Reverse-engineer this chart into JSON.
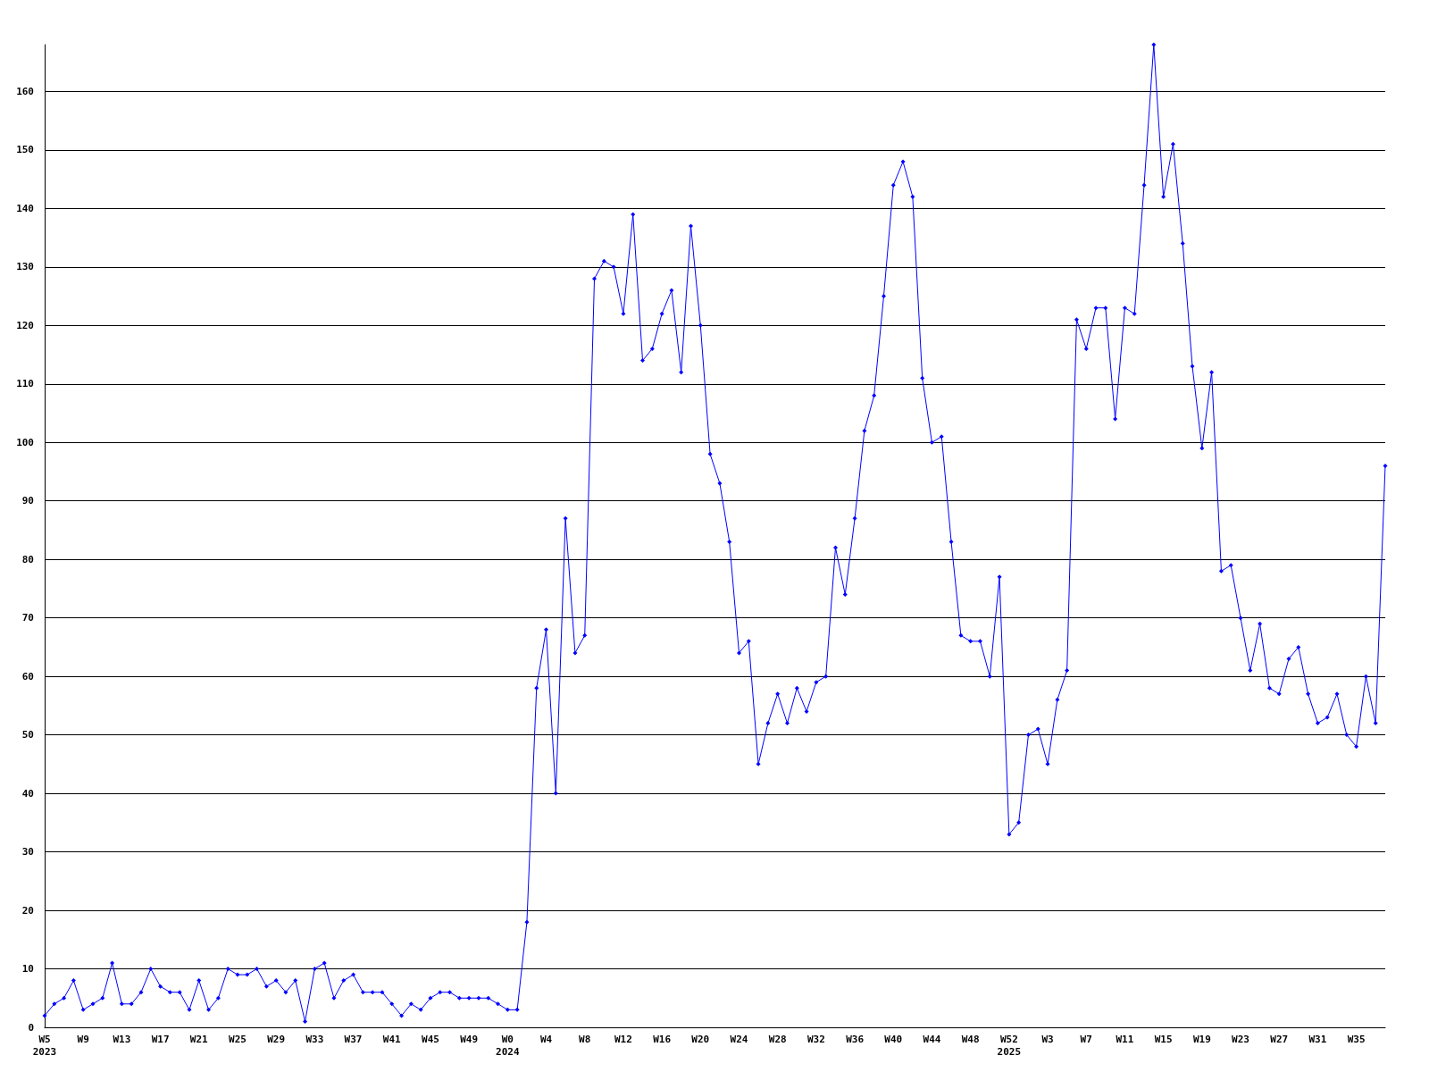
{
  "chart_data": {
    "type": "line",
    "categories": [
      "W5\n2023",
      null,
      null,
      null,
      "W9",
      null,
      null,
      null,
      "W13",
      null,
      null,
      null,
      "W17",
      null,
      null,
      null,
      "W21",
      null,
      null,
      null,
      "W25",
      null,
      null,
      null,
      "W29",
      null,
      null,
      null,
      "W33",
      null,
      null,
      null,
      "W37",
      null,
      null,
      null,
      "W41",
      null,
      null,
      null,
      "W45",
      null,
      null,
      null,
      "W49",
      null,
      null,
      null,
      "W0\n2024",
      null,
      null,
      null,
      "W4",
      null,
      null,
      null,
      "W8",
      null,
      null,
      null,
      "W12",
      null,
      null,
      null,
      "W16",
      null,
      null,
      null,
      "W20",
      null,
      null,
      null,
      "W24",
      null,
      null,
      null,
      "W28",
      null,
      null,
      null,
      "W32",
      null,
      null,
      null,
      "W36",
      null,
      null,
      null,
      "W40",
      null,
      null,
      null,
      "W44",
      null,
      null,
      null,
      "W48",
      null,
      null,
      null,
      "W52\n2025",
      null,
      null,
      null,
      "W3",
      null,
      null,
      null,
      "W7",
      null,
      null,
      null,
      "W11",
      null,
      null,
      null,
      "W15",
      null,
      null,
      null,
      "W19",
      null,
      null,
      null,
      "W23",
      null,
      null,
      null,
      "W27",
      null,
      null,
      null,
      "W31",
      null,
      null,
      null,
      "W35",
      null,
      null,
      null
    ],
    "series": [
      {
        "color": "#0000ff",
        "values": [
          2,
          4,
          5,
          8,
          3,
          4,
          5,
          11,
          4,
          4,
          6,
          10,
          7,
          6,
          6,
          3,
          8,
          3,
          5,
          10,
          9,
          9,
          10,
          7,
          8,
          6,
          8,
          1,
          10,
          11,
          5,
          8,
          9,
          6,
          6,
          6,
          4,
          2,
          4,
          3,
          5,
          6,
          6,
          5,
          5,
          5,
          5,
          4,
          3,
          3,
          18,
          58,
          68,
          40,
          87,
          64,
          67,
          128,
          131,
          130,
          122,
          139,
          114,
          116,
          122,
          126,
          112,
          137,
          120,
          98,
          93,
          83,
          64,
          66,
          45,
          52,
          57,
          52,
          58,
          54,
          59,
          60,
          82,
          74,
          87,
          102,
          108,
          125,
          144,
          148,
          142,
          111,
          100,
          101,
          83,
          67,
          66,
          66,
          60,
          77,
          33,
          35,
          50,
          51,
          45,
          56,
          61,
          121,
          116,
          123,
          123,
          104,
          123,
          122,
          144,
          168,
          142,
          151,
          134,
          113,
          99,
          112,
          78,
          79,
          70,
          61,
          69,
          58,
          57,
          63,
          65,
          57,
          52,
          53,
          57,
          50,
          48,
          60,
          52,
          96
        ]
      }
    ],
    "ylim": [
      0,
      168
    ],
    "yticks": [
      0,
      10,
      20,
      30,
      40,
      50,
      60,
      70,
      80,
      90,
      100,
      110,
      120,
      130,
      140,
      150,
      160
    ],
    "grid": "y",
    "marker": "diamond",
    "line_style": "solid"
  }
}
